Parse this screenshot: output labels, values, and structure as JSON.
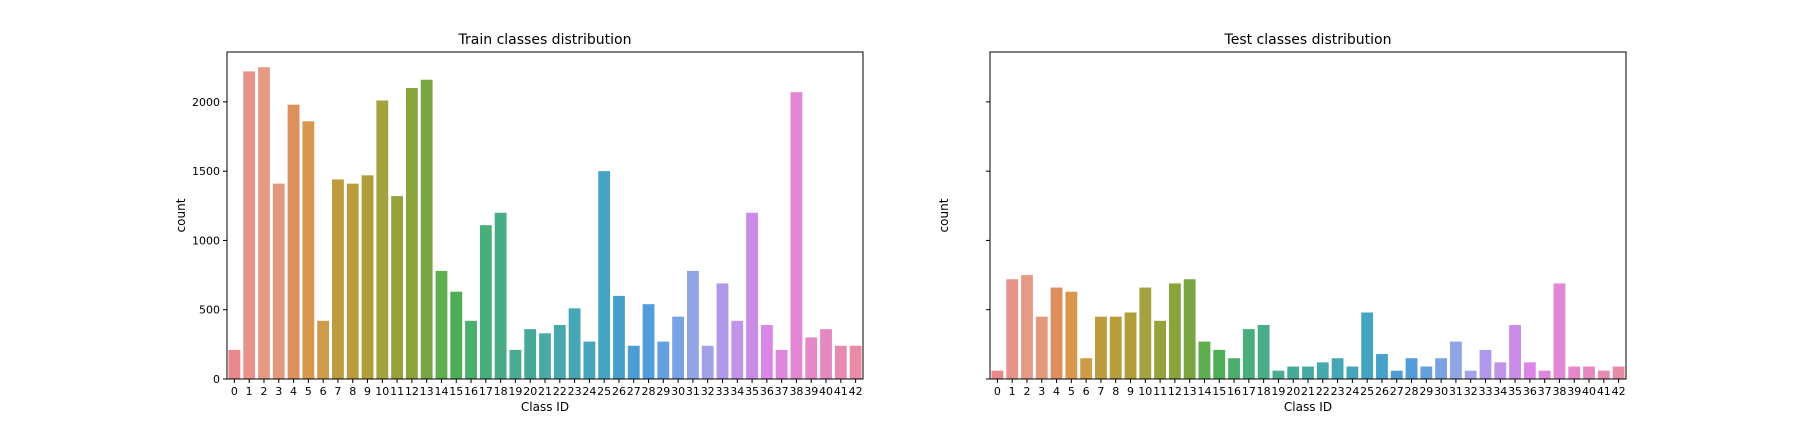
{
  "chart_data": [
    {
      "type": "bar",
      "title": "Train classes distribution",
      "xlabel": "Class ID",
      "ylabel": "count",
      "categories": [
        "0",
        "1",
        "2",
        "3",
        "4",
        "5",
        "6",
        "7",
        "8",
        "9",
        "10",
        "11",
        "12",
        "13",
        "14",
        "15",
        "16",
        "17",
        "18",
        "19",
        "20",
        "21",
        "22",
        "23",
        "24",
        "25",
        "26",
        "27",
        "28",
        "29",
        "30",
        "31",
        "32",
        "33",
        "34",
        "35",
        "36",
        "37",
        "38",
        "39",
        "40",
        "41",
        "42"
      ],
      "values": [
        210,
        2220,
        2250,
        1410,
        1980,
        1860,
        420,
        1440,
        1410,
        1470,
        2010,
        1320,
        2100,
        2160,
        780,
        630,
        420,
        1110,
        1200,
        210,
        360,
        330,
        390,
        510,
        270,
        1500,
        600,
        240,
        540,
        270,
        450,
        780,
        240,
        690,
        420,
        1200,
        390,
        210,
        2070,
        300,
        360,
        240,
        240
      ],
      "ylim": [
        0,
        2360
      ],
      "yticks": [
        0,
        500,
        1000,
        1500,
        2000
      ],
      "show_ytick_labels": true,
      "grid": false,
      "colors": [
        "#e8888a",
        "#e8928a",
        "#e59a86",
        "#e39a7c",
        "#dd8f5d",
        "#d8974d",
        "#cf9a4a",
        "#be9b3f",
        "#b99d3c",
        "#b19e3b",
        "#a2a23e",
        "#98a23b",
        "#8aa43c",
        "#7ca643",
        "#5ead4f",
        "#4dae55",
        "#4aae6d",
        "#4aae7a",
        "#48ad87",
        "#49ab93",
        "#46aa9a",
        "#48a9a5",
        "#47a8ae",
        "#45a7b5",
        "#46a4bc",
        "#44a4c2",
        "#47a0ca",
        "#4b9dd2",
        "#529cd9",
        "#669fdd",
        "#7aa1e2",
        "#90a4e6",
        "#a3a2e8",
        "#b199e9",
        "#c194ea",
        "#cb8ce8",
        "#db86e6",
        "#df87de",
        "#e287d4",
        "#e488ca",
        "#e58ac0",
        "#e78bb3",
        "#e98aa6"
      ]
    },
    {
      "type": "bar",
      "title": "Test classes distribution",
      "xlabel": "Class ID",
      "ylabel": "count",
      "categories": [
        "0",
        "1",
        "2",
        "3",
        "4",
        "5",
        "6",
        "7",
        "8",
        "9",
        "10",
        "11",
        "12",
        "13",
        "14",
        "15",
        "16",
        "17",
        "18",
        "19",
        "20",
        "21",
        "22",
        "23",
        "24",
        "25",
        "26",
        "27",
        "28",
        "29",
        "30",
        "31",
        "32",
        "33",
        "34",
        "35",
        "36",
        "37",
        "38",
        "39",
        "40",
        "41",
        "42"
      ],
      "values": [
        60,
        720,
        750,
        450,
        660,
        630,
        150,
        450,
        450,
        480,
        660,
        420,
        690,
        720,
        270,
        210,
        150,
        360,
        390,
        60,
        90,
        90,
        120,
        150,
        90,
        480,
        180,
        60,
        150,
        90,
        150,
        270,
        60,
        210,
        120,
        390,
        120,
        60,
        690,
        90,
        90,
        60,
        90
      ],
      "ylim": [
        0,
        2360
      ],
      "yticks": [
        0,
        500,
        1000,
        1500,
        2000
      ],
      "show_ytick_labels": false,
      "grid": false,
      "colors": [
        "#e8888a",
        "#e8928a",
        "#e59a86",
        "#e39a7c",
        "#dd8f5d",
        "#d8974d",
        "#cf9a4a",
        "#be9b3f",
        "#b99d3c",
        "#b19e3b",
        "#a2a23e",
        "#98a23b",
        "#8aa43c",
        "#7ca643",
        "#5ead4f",
        "#4dae55",
        "#4aae6d",
        "#4aae7a",
        "#48ad87",
        "#49ab93",
        "#46aa9a",
        "#48a9a5",
        "#47a8ae",
        "#45a7b5",
        "#46a4bc",
        "#44a4c2",
        "#47a0ca",
        "#4b9dd2",
        "#529cd9",
        "#669fdd",
        "#7aa1e2",
        "#90a4e6",
        "#a3a2e8",
        "#b199e9",
        "#c194ea",
        "#cb8ce8",
        "#db86e6",
        "#df87de",
        "#e287d4",
        "#e488ca",
        "#e58ac0",
        "#e78bb3",
        "#e98aa6"
      ]
    }
  ]
}
